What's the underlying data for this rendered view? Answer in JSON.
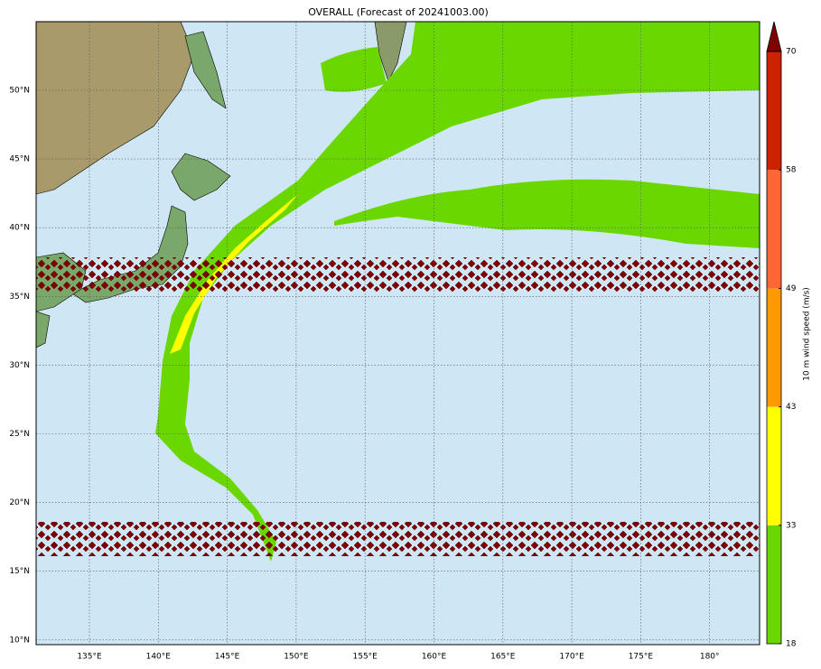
{
  "title": "OVERALL (Forecast of 20241003.00)",
  "map": {
    "lat_labels": [
      "50°N",
      "45°N",
      "40°N",
      "35°N",
      "30°N",
      "25°N",
      "20°N",
      "15°N",
      "10°N"
    ],
    "lon_labels": [
      "135°E",
      "140°E",
      "145°E",
      "150°E",
      "155°E",
      "160°E",
      "165°E",
      "170°E",
      "175°E",
      "180°"
    ]
  },
  "colorbar": {
    "label": "10 m wind speed (m/s)",
    "ticks": [
      18,
      33,
      43,
      49,
      58,
      70
    ],
    "colors": [
      "#6ad800",
      "#ffff00",
      "#ff9900",
      "#ff6633",
      "#cc2200"
    ],
    "extend_color": "#800000"
  }
}
